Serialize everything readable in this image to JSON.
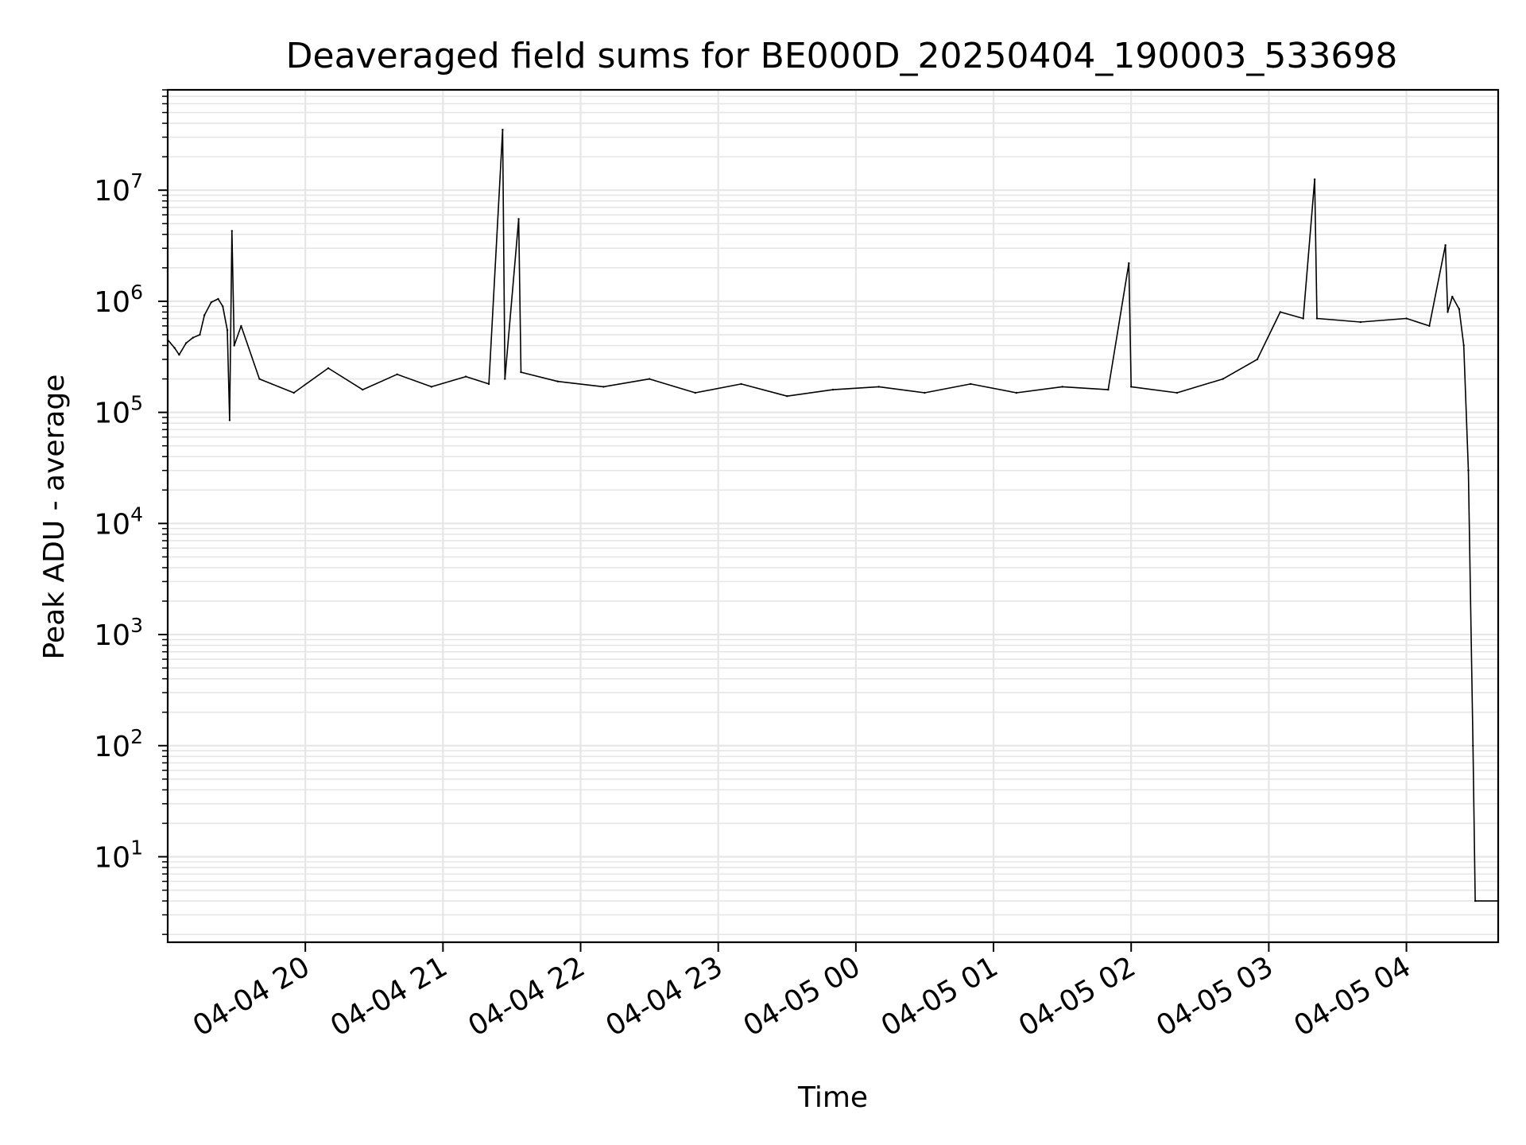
{
  "chart_data": {
    "type": "line",
    "title": "Deaveraged field sums for BE000D_20250404_190003_533698",
    "xlabel": "Time",
    "ylabel": "Peak ADU - average",
    "yscale": "log",
    "xlim": [
      "2025-04-04 19:00",
      "2025-04-05 04:40"
    ],
    "ylim": [
      1.7,
      80000000
    ],
    "grid": true,
    "x_tick_labels": [
      "04-04 20",
      "04-04 21",
      "04-04 22",
      "04-04 23",
      "04-05 00",
      "04-05 01",
      "04-05 02",
      "04-05 03",
      "04-05 04"
    ],
    "x_ticks": [
      "2025-04-04 20:00",
      "2025-04-04 21:00",
      "2025-04-04 22:00",
      "2025-04-04 23:00",
      "2025-04-05 00:00",
      "2025-04-05 01:00",
      "2025-04-05 02:00",
      "2025-04-05 03:00",
      "2025-04-05 04:00"
    ],
    "y_ticks": [
      {
        "base": "10",
        "exp": "1",
        "value": 10
      },
      {
        "base": "10",
        "exp": "2",
        "value": 100
      },
      {
        "base": "10",
        "exp": "3",
        "value": 1000
      },
      {
        "base": "10",
        "exp": "4",
        "value": 10000
      },
      {
        "base": "10",
        "exp": "5",
        "value": 100000
      },
      {
        "base": "10",
        "exp": "6",
        "value": 1000000
      },
      {
        "base": "10",
        "exp": "7",
        "value": 10000000
      }
    ],
    "series": [
      {
        "color": "#000000",
        "points": [
          [
            "2025-04-04 19:00",
            450000
          ],
          [
            "2025-04-04 19:03",
            380000
          ],
          [
            "2025-04-04 19:05",
            330000
          ],
          [
            "2025-04-04 19:08",
            420000
          ],
          [
            "2025-04-04 19:11",
            470000
          ],
          [
            "2025-04-04 19:14",
            500000
          ],
          [
            "2025-04-04 19:16",
            750000
          ],
          [
            "2025-04-04 19:19",
            980000
          ],
          [
            "2025-04-04 19:22",
            1050000
          ],
          [
            "2025-04-04 19:24",
            900000
          ],
          [
            "2025-04-04 19:26",
            550000
          ],
          [
            "2025-04-04 19:27",
            85000
          ],
          [
            "2025-04-04 19:28",
            4300000
          ],
          [
            "2025-04-04 19:29",
            400000
          ],
          [
            "2025-04-04 19:32",
            600000
          ],
          [
            "2025-04-04 19:40",
            200000
          ],
          [
            "2025-04-04 19:55",
            150000
          ],
          [
            "2025-04-04 20:10",
            250000
          ],
          [
            "2025-04-04 20:25",
            160000
          ],
          [
            "2025-04-04 20:40",
            220000
          ],
          [
            "2025-04-04 20:55",
            170000
          ],
          [
            "2025-04-04 21:10",
            210000
          ],
          [
            "2025-04-04 21:20",
            180000
          ],
          [
            "2025-04-04 21:26",
            35000000
          ],
          [
            "2025-04-04 21:27",
            200000
          ],
          [
            "2025-04-04 21:33",
            5500000
          ],
          [
            "2025-04-04 21:34",
            230000
          ],
          [
            "2025-04-04 21:50",
            190000
          ],
          [
            "2025-04-04 22:10",
            170000
          ],
          [
            "2025-04-04 22:30",
            200000
          ],
          [
            "2025-04-04 22:50",
            150000
          ],
          [
            "2025-04-04 23:10",
            180000
          ],
          [
            "2025-04-04 23:30",
            140000
          ],
          [
            "2025-04-04 23:50",
            160000
          ],
          [
            "2025-04-05 00:10",
            170000
          ],
          [
            "2025-04-05 00:30",
            150000
          ],
          [
            "2025-04-05 00:50",
            180000
          ],
          [
            "2025-04-05 01:10",
            150000
          ],
          [
            "2025-04-05 01:30",
            170000
          ],
          [
            "2025-04-05 01:50",
            160000
          ],
          [
            "2025-04-05 01:59",
            2200000
          ],
          [
            "2025-04-05 02:00",
            170000
          ],
          [
            "2025-04-05 02:20",
            150000
          ],
          [
            "2025-04-05 02:40",
            200000
          ],
          [
            "2025-04-05 02:55",
            300000
          ],
          [
            "2025-04-05 03:05",
            800000
          ],
          [
            "2025-04-05 03:15",
            700000
          ],
          [
            "2025-04-05 03:20",
            12500000
          ],
          [
            "2025-04-05 03:21",
            700000
          ],
          [
            "2025-04-05 03:40",
            650000
          ],
          [
            "2025-04-05 04:00",
            700000
          ],
          [
            "2025-04-05 04:10",
            600000
          ],
          [
            "2025-04-05 04:17",
            3200000
          ],
          [
            "2025-04-05 04:18",
            800000
          ],
          [
            "2025-04-05 04:20",
            1100000
          ],
          [
            "2025-04-05 04:23",
            850000
          ],
          [
            "2025-04-05 04:25",
            400000
          ],
          [
            "2025-04-05 04:27",
            30000
          ],
          [
            "2025-04-05 04:29",
            100
          ],
          [
            "2025-04-05 04:30",
            4
          ],
          [
            "2025-04-05 04:40",
            4
          ]
        ]
      }
    ]
  }
}
